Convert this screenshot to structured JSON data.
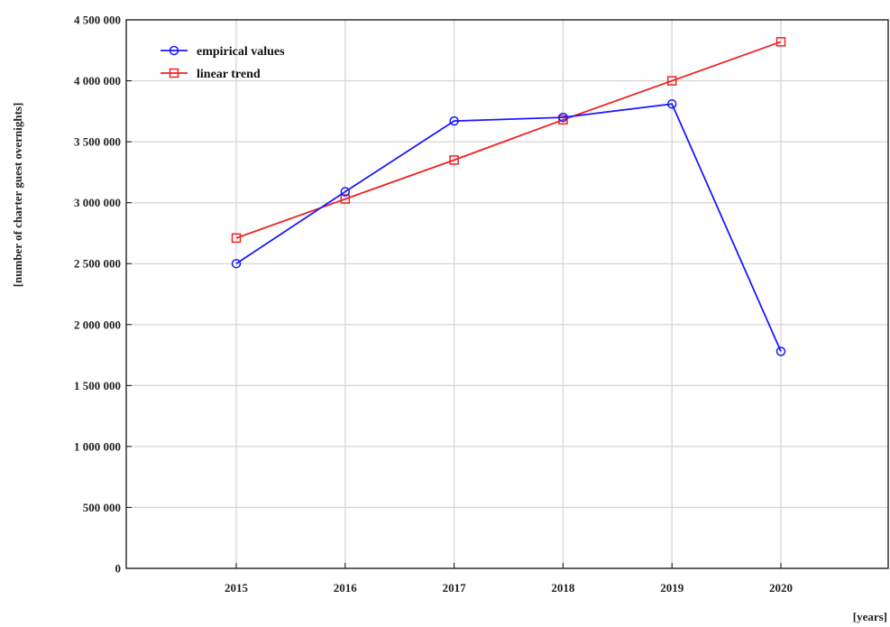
{
  "chart_data": {
    "type": "line",
    "xlabel": "[years]",
    "ylabel": "[number of charter guest overnights]",
    "categories": [
      "2015",
      "2016",
      "2017",
      "2018",
      "2019",
      "2020"
    ],
    "ylim": [
      0,
      4500000
    ],
    "yticks": [
      0,
      500000,
      1000000,
      1500000,
      2000000,
      2500000,
      3000000,
      3500000,
      4000000,
      4500000
    ],
    "ytick_labels": [
      "0",
      "500 000",
      "1 000 000",
      "1 500 000",
      "2 000 000",
      "2 500 000",
      "3 000 000",
      "3 500 000",
      "4 000 000",
      "4 500 000"
    ],
    "grid": true,
    "legend_position": "top-left",
    "series": [
      {
        "name": "empirical values",
        "color": "#1a1aff",
        "marker": "circle",
        "values": [
          2500000,
          3090000,
          3670000,
          3700000,
          3810000,
          1780000
        ]
      },
      {
        "name": "linear trend",
        "color": "#ee2222",
        "marker": "square",
        "values": [
          2710000,
          3030000,
          3350000,
          3680000,
          4000000,
          4320000
        ]
      }
    ]
  }
}
